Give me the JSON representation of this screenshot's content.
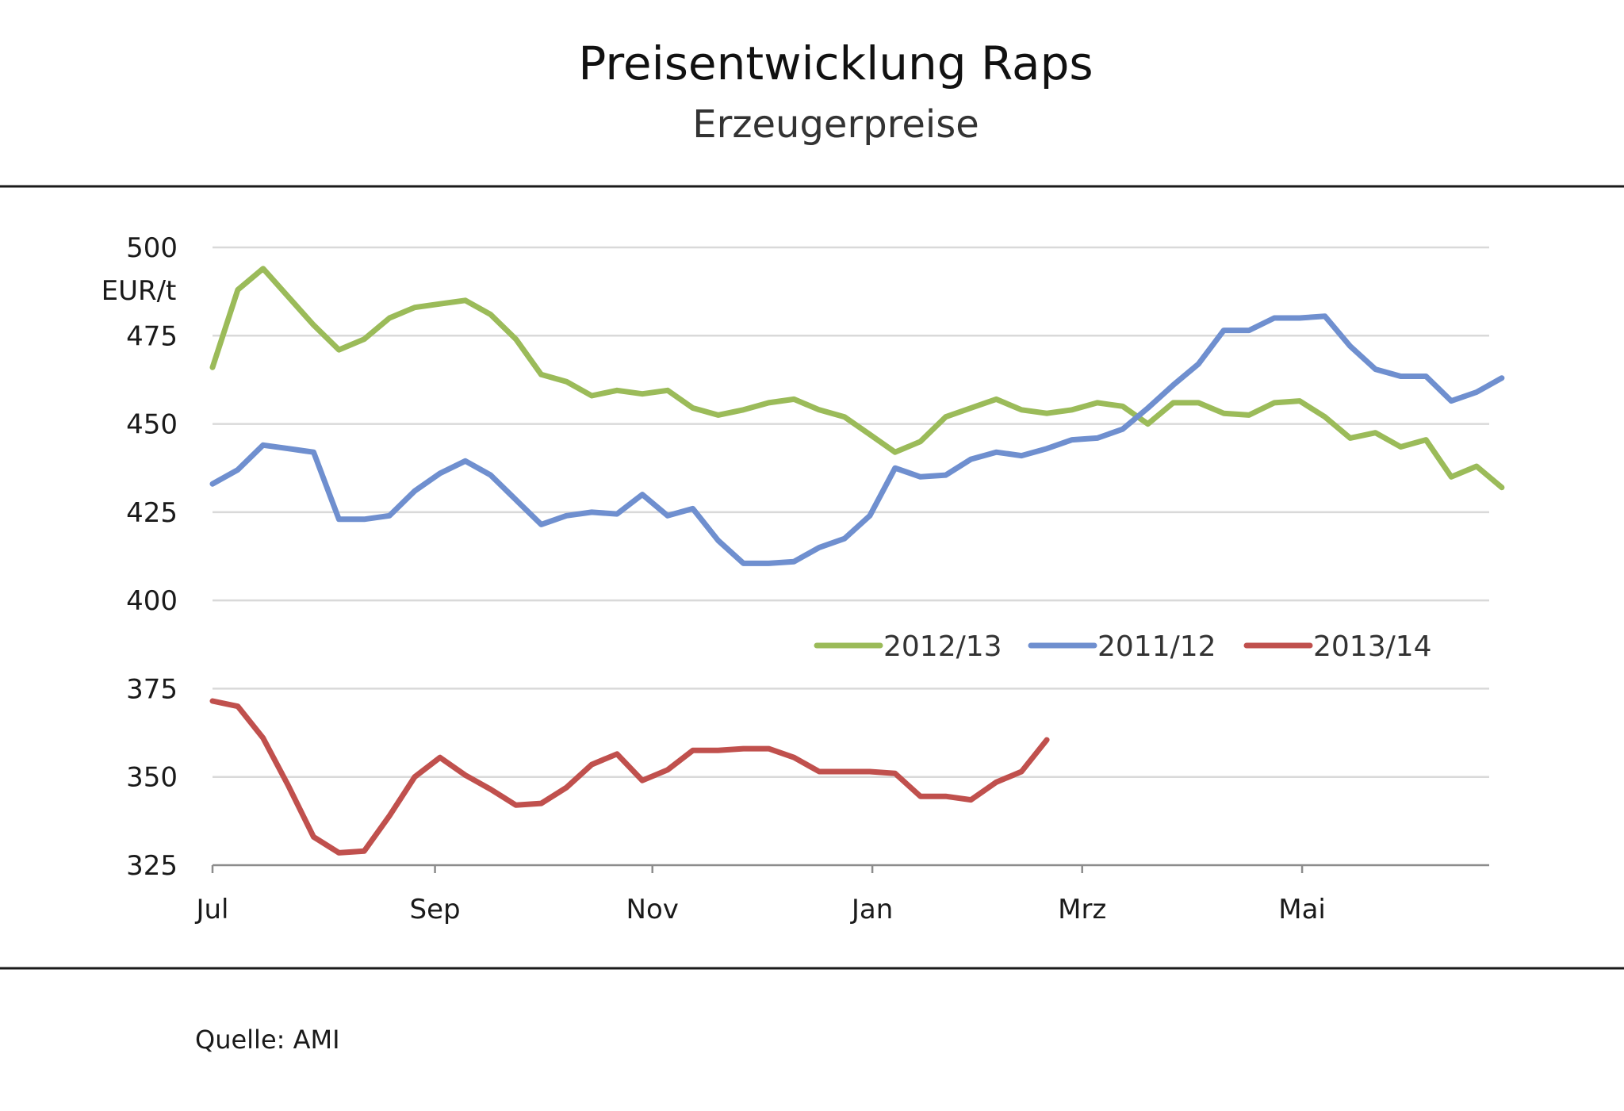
{
  "chart_data": {
    "type": "line",
    "title": "Preisentwicklung Raps",
    "subtitle": "Erzeugerpreise",
    "ylabel": "EUR/t",
    "xlabel": "",
    "source": "Quelle: AMI",
    "ylim": [
      325,
      500
    ],
    "yticks": [
      325,
      350,
      375,
      400,
      425,
      450,
      475,
      500
    ],
    "xticks": [
      {
        "label": "Jul",
        "week": 0
      },
      {
        "label": "Sep",
        "week": 8.8
      },
      {
        "label": "Nov",
        "week": 17.4
      },
      {
        "label": "Jan",
        "week": 26.1
      },
      {
        "label": "Mrz",
        "week": 34.4
      },
      {
        "label": "Mai",
        "week": 43.1
      }
    ],
    "xlim": [
      0,
      50.5
    ],
    "grid": true,
    "legend_position": "center-right",
    "series": [
      {
        "name": "2012/13",
        "color": "#9bbb59",
        "values": [
          466,
          488,
          494,
          486,
          478,
          471,
          474,
          480,
          483,
          484,
          485,
          481,
          474,
          464,
          462,
          458,
          459.5,
          458.5,
          459.5,
          454.5,
          452.5,
          454,
          456,
          457,
          454,
          452,
          447,
          442,
          445,
          452,
          454.5,
          457,
          454,
          453,
          454,
          456,
          455,
          450,
          456,
          456,
          453,
          452.5,
          456,
          456.5,
          452,
          446,
          447.5,
          443.5,
          445.5,
          435,
          438,
          432
        ]
      },
      {
        "name": "2011/12",
        "color": "#6f8fcf",
        "values": [
          433,
          437,
          444,
          443,
          442,
          423,
          423,
          424,
          431,
          436,
          439.5,
          435.5,
          428.5,
          421.5,
          424,
          425,
          424.5,
          430,
          424,
          426,
          417,
          410.5,
          410.5,
          411,
          415,
          417.5,
          424,
          437.5,
          435,
          435.5,
          440,
          442,
          441,
          443,
          445.5,
          446,
          448.5,
          454.5,
          461,
          467,
          476.5,
          476.5,
          480,
          480,
          480.5,
          472,
          465.5,
          463.5,
          463.5,
          456.5,
          459,
          463
        ]
      },
      {
        "name": "2013/14",
        "color": "#c0504d",
        "values": [
          371.5,
          370,
          361,
          347.5,
          333,
          328.5,
          329,
          339,
          350,
          355.5,
          350.5,
          346.5,
          342,
          342.5,
          347,
          353.5,
          356.5,
          349,
          352,
          357.5,
          357.5,
          358,
          358,
          355.5,
          351.5,
          351.5,
          351.5,
          351,
          344.5,
          344.5,
          343.5,
          348.5,
          351.5,
          360.5
        ]
      }
    ]
  }
}
